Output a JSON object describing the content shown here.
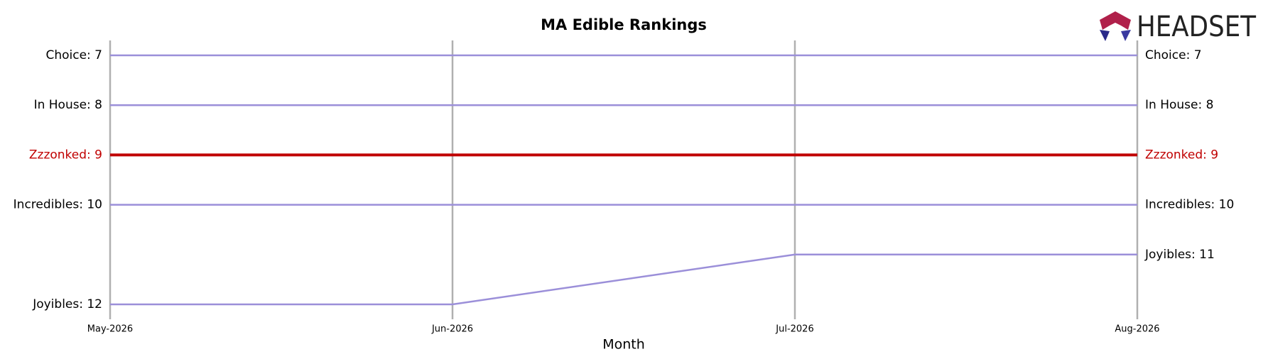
{
  "chart_data": {
    "type": "line",
    "title": "MA Edible Rankings",
    "logo": "HEADSET",
    "x_label": "Month",
    "categories": [
      "May-2026",
      "Jun-2026",
      "Jul-2026",
      "Aug-2026"
    ],
    "ylim": [
      12.3,
      6.7
    ],
    "grid": true,
    "series": [
      {
        "name": "Choice",
        "color": "#9b8fd9",
        "values": [
          7,
          7,
          7,
          7
        ],
        "value_labels": [
          "Choice: 7",
          null,
          null,
          "Choice: 7"
        ]
      },
      {
        "name": "In House",
        "color": "#9b8fd9",
        "values": [
          8,
          8,
          8,
          8
        ],
        "value_labels": [
          "In House: 8",
          null,
          null,
          "In House: 8"
        ]
      },
      {
        "name": "Zzzonked",
        "color": "#c00000",
        "values": [
          9,
          9,
          9,
          9
        ],
        "value_labels": [
          "Zzzonked: 9",
          null,
          null,
          "Zzzonked: 9"
        ]
      },
      {
        "name": "Incredibles",
        "color": "#9b8fd9",
        "values": [
          10,
          10,
          10,
          10
        ],
        "value_labels": [
          "Incredibles: 10",
          null,
          null,
          "Incredibles: 10"
        ]
      },
      {
        "name": "Joyibles",
        "color": "#9b8fd9",
        "values": [
          12,
          12,
          11,
          11
        ],
        "value_labels": [
          "Joyibles: 12",
          null,
          null,
          "Joyibles: 11"
        ]
      }
    ]
  }
}
